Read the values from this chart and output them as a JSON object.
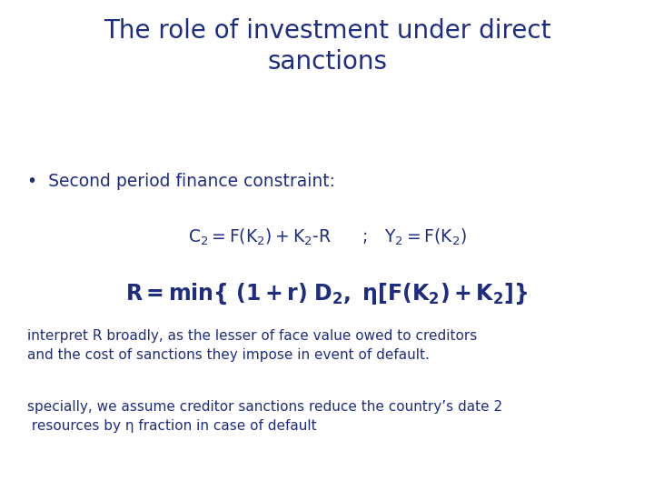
{
  "title_line1": "The role of investment under direct",
  "title_line2": "sanctions",
  "title_color": "#1F2D7B",
  "title_fontsize": 20,
  "bullet_text": "Second period finance constraint:",
  "bullet_color": "#1F2D7B",
  "bullet_fontsize": 13.5,
  "eq1_text": "C₂=F(K₂)+K₂-R      ;  Y₂=F(K₂)",
  "equation1_color": "#1F2D7B",
  "equation1_fontsize": 13.5,
  "equation2_color": "#1F2D7B",
  "equation2_fontsize": 17,
  "body1_line1": "interpret R broadly, as the lesser of face value owed to creditors",
  "body1_line2": "and the cost of sanctions they impose in event of default.",
  "body1_color": "#1F2D7B",
  "body1_fontsize": 11,
  "body2_line1": "specially, we assume creditor sanctions reduce the country’s date 2",
  "body2_line2": " resources by η fraction in case of default",
  "body2_color": "#1F2D7B",
  "body2_fontsize": 11,
  "background_color": "#ffffff"
}
